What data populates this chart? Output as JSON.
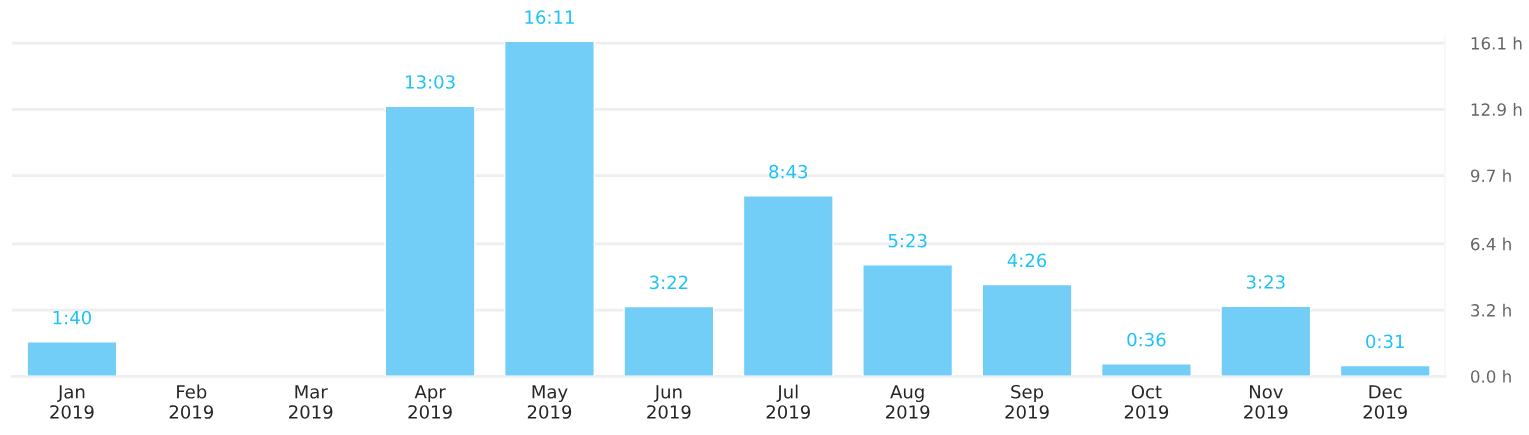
{
  "chart_data": {
    "type": "bar",
    "categories": [
      "Jan\n2019",
      "Feb\n2019",
      "Mar\n2019",
      "Apr\n2019",
      "May\n2019",
      "Jun\n2019",
      "Jul\n2019",
      "Aug\n2019",
      "Sep\n2019",
      "Oct\n2019",
      "Nov\n2019",
      "Dec\n2019"
    ],
    "values": [
      1.6667,
      null,
      null,
      13.05,
      16.1833,
      3.3667,
      8.7167,
      5.3833,
      4.4333,
      0.6,
      3.3833,
      0.5167
    ],
    "value_labels": [
      "1:40",
      null,
      null,
      "13:03",
      "16:11",
      "3:22",
      "8:43",
      "5:23",
      "4:26",
      "0:36",
      "3:23",
      "0:31"
    ],
    "color": "#72cdf7",
    "ylim": [
      0,
      16.5
    ],
    "yticks": [
      {
        "value": 0,
        "label": "0.0 h"
      },
      {
        "value": 3.2,
        "label": "3.2 h"
      },
      {
        "value": 6.4,
        "label": "6.4 h"
      },
      {
        "value": 9.7,
        "label": "9.7 h"
      },
      {
        "value": 12.9,
        "label": "12.9 h"
      },
      {
        "value": 16.1,
        "label": "16.1 h"
      }
    ],
    "grid": "y"
  }
}
